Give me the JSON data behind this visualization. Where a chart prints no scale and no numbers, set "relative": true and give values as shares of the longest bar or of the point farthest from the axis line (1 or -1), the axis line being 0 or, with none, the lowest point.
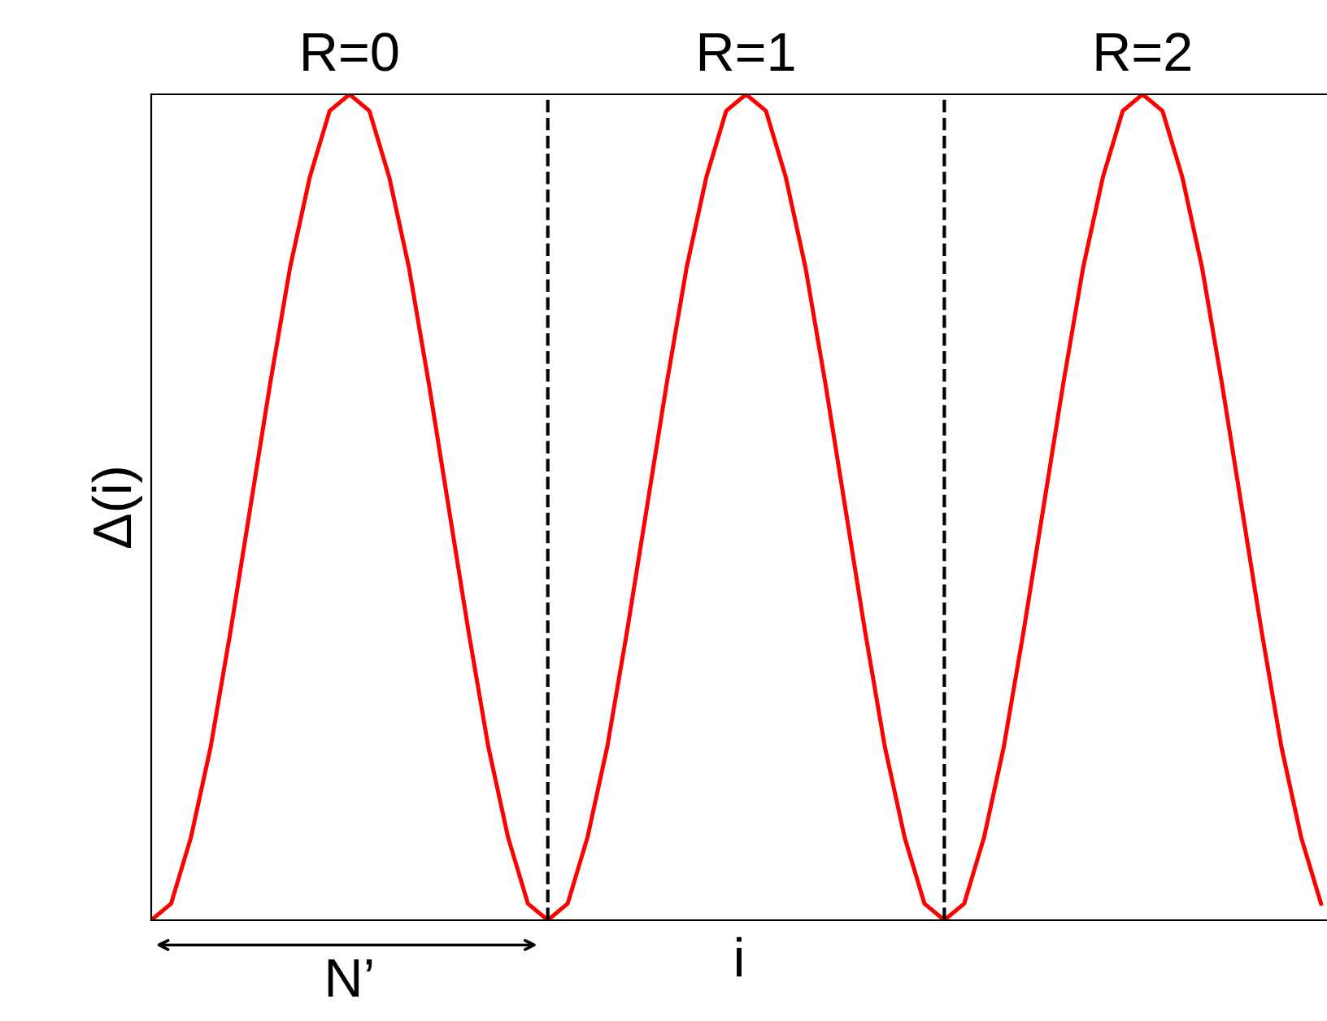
{
  "chart_data": {
    "type": "line",
    "relative": true,
    "xlabel": "i",
    "ylabel": "Δ(i)",
    "categories": [
      null,
      null,
      null,
      null,
      null,
      null,
      null,
      null,
      null,
      null,
      null,
      null,
      null,
      null,
      null,
      null,
      null,
      null,
      null,
      null,
      null,
      null,
      null,
      null,
      null,
      null,
      null,
      null,
      null,
      null,
      null,
      null,
      null,
      null,
      null,
      null,
      null,
      null,
      null,
      null,
      null,
      null,
      null,
      null,
      null,
      null,
      null,
      null,
      null,
      null,
      null,
      null,
      null,
      null,
      null,
      null,
      null,
      null,
      null,
      null
    ],
    "series": [
      {
        "color": "#ff0000",
        "values": [
          0,
          0.02,
          0.1,
          0.21,
          0.35,
          0.5,
          0.65,
          0.79,
          0.9,
          0.98,
          1,
          0.98,
          0.9,
          0.79,
          0.65,
          0.5,
          0.35,
          0.21,
          0.1,
          0.02,
          0,
          0.02,
          0.1,
          0.21,
          0.35,
          0.5,
          0.65,
          0.79,
          0.9,
          0.98,
          1,
          0.98,
          0.9,
          0.79,
          0.65,
          0.5,
          0.35,
          0.21,
          0.1,
          0.02,
          0,
          0.02,
          0.1,
          0.21,
          0.35,
          0.5,
          0.65,
          0.79,
          0.9,
          0.98,
          1,
          0.98,
          0.9,
          0.79,
          0.65,
          0.5,
          0.35,
          0.21,
          0.1,
          0.02
        ]
      }
    ],
    "annotations": [
      "R=0",
      "R=1",
      "R=2",
      "N’"
    ],
    "grid": false,
    "legend": false,
    "marker": "none",
    "line_style": "solid"
  }
}
